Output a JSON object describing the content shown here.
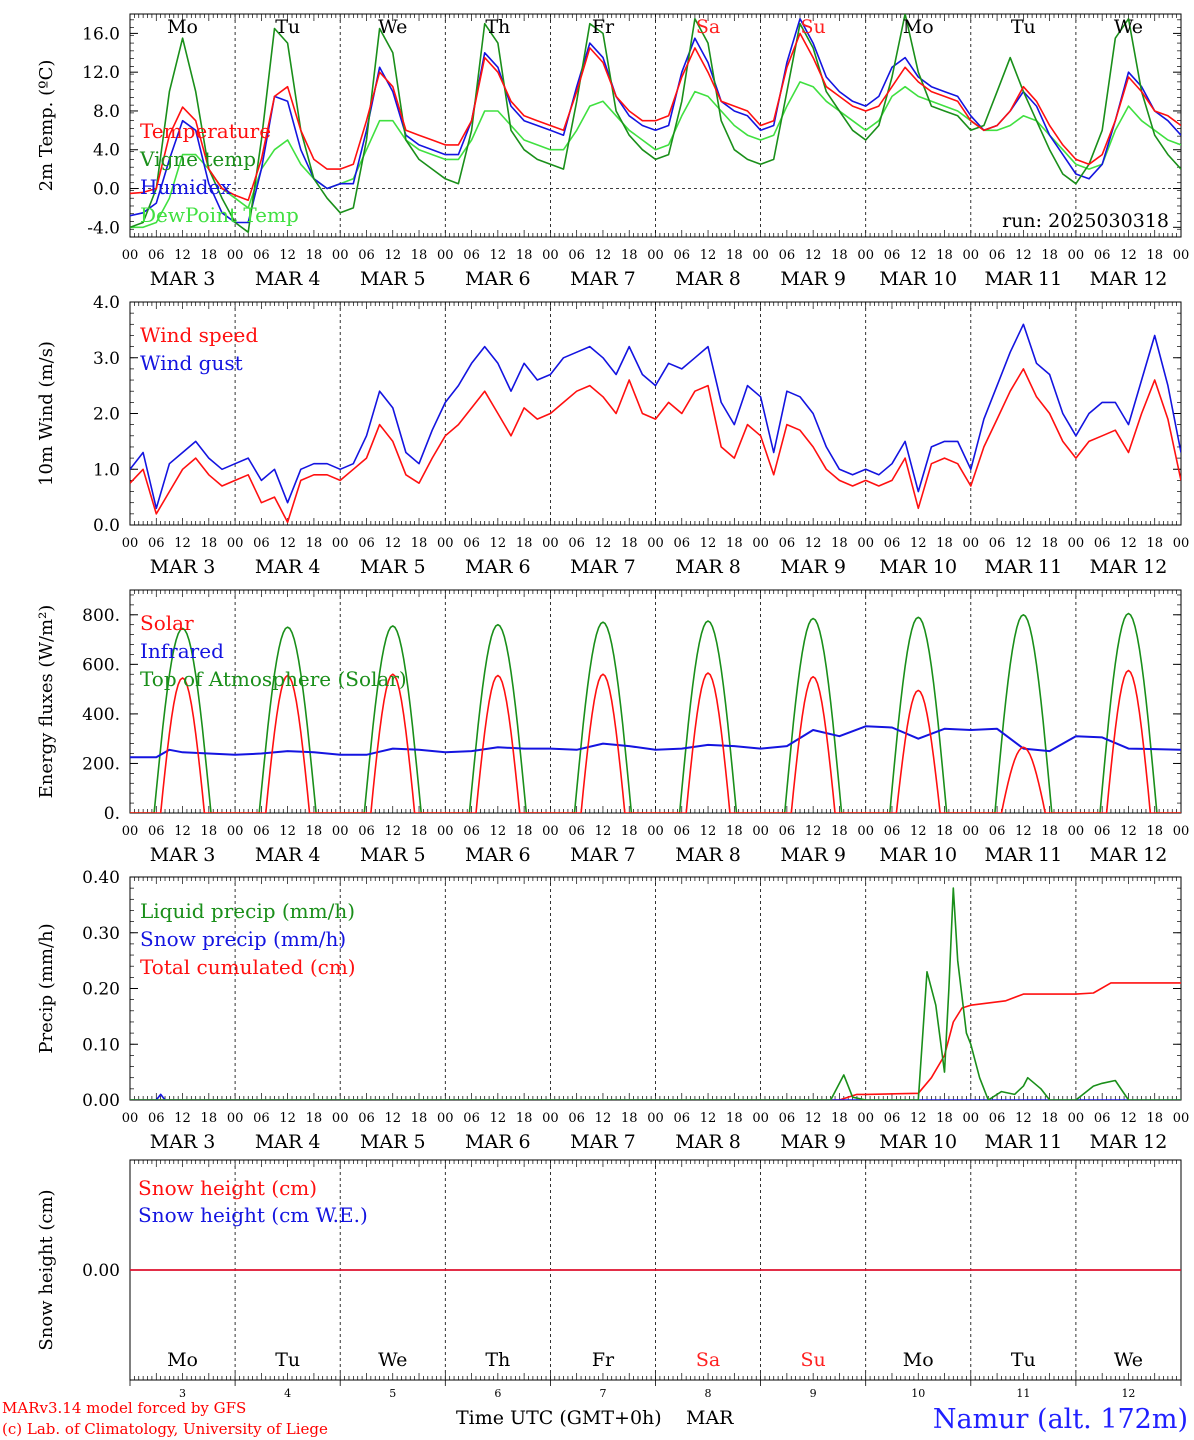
{
  "colors": {
    "red": "#ff1010",
    "green": "#1a8f1a",
    "blue": "#1414e0",
    "lightgreen": "#40e040",
    "weekend": "#ff2020",
    "site": "#2020ff",
    "footer": "#ff0000"
  },
  "days": {
    "weekday_labels": [
      "Mo",
      "Tu",
      "We",
      "Th",
      "Fr",
      "Sa",
      "Su",
      "Mo",
      "Tu",
      "We"
    ],
    "weekend_index": [
      5,
      6
    ],
    "date_labels": [
      "MAR  3",
      "MAR  4",
      "MAR  5",
      "MAR  6",
      "MAR  7",
      "MAR  8",
      "MAR  9",
      "MAR 10",
      "MAR 11",
      "MAR 12"
    ],
    "day_numbers": [
      "3",
      "4",
      "5",
      "6",
      "7",
      "8",
      "9",
      "10",
      "11",
      "12"
    ],
    "hour_labels": [
      "00",
      "06",
      "12",
      "18"
    ],
    "final_hour": "00"
  },
  "footer": {
    "model": "MARv3.14 model forced by GFS",
    "lab": "(c) Lab. of Climatology, University of Liege",
    "xlabel": "Time UTC (GMT+0h)",
    "month": "MAR",
    "site": "Namur (alt. 172m)"
  },
  "chart_data": [
    {
      "type": "line",
      "ylabel": "2m Temp. (ºC)",
      "ylim": [
        -5,
        18
      ],
      "yticks": [
        "-4.0",
        "0.0",
        "4.0",
        "8.0",
        "12.0",
        "16.0"
      ],
      "ytick_values": [
        -4,
        0,
        4,
        8,
        12,
        16
      ],
      "annotation": "run: 2025030318",
      "zero_line": true,
      "x_hours": [
        0,
        3,
        6,
        9,
        12,
        15,
        18,
        21,
        24,
        27,
        30,
        33,
        36,
        39,
        42,
        45,
        48,
        51,
        54,
        57,
        60,
        63,
        66,
        69,
        72,
        75,
        78,
        81,
        84,
        87,
        90,
        93,
        96,
        99,
        102,
        105,
        108,
        111,
        114,
        117,
        120,
        123,
        126,
        129,
        132,
        135,
        138,
        141,
        144,
        147,
        150,
        153,
        156,
        159,
        162,
        165,
        168,
        171,
        174,
        177,
        180,
        183,
        186,
        189,
        192,
        195,
        198,
        201,
        204,
        207,
        210,
        213,
        216,
        219,
        222,
        225,
        228,
        231,
        234,
        237,
        240
      ],
      "series": [
        {
          "name": "Temperature",
          "color": "#ff1010",
          "values": [
            -0.5,
            -0.4,
            0.0,
            5.5,
            8.4,
            7.0,
            2.0,
            0.0,
            -0.7,
            -1.2,
            3.0,
            9.5,
            10.5,
            6.0,
            3.0,
            2.0,
            2.0,
            2.5,
            7.0,
            12.0,
            10.5,
            6.0,
            5.5,
            5.0,
            4.5,
            4.5,
            7.0,
            13.5,
            12.0,
            9.0,
            7.5,
            7.0,
            6.5,
            6.0,
            10.0,
            14.5,
            13.0,
            9.5,
            8.0,
            7.0,
            7.0,
            7.5,
            11.5,
            14.5,
            12.0,
            9.0,
            8.5,
            8.0,
            6.5,
            7.0,
            12.5,
            16.0,
            13.5,
            10.5,
            9.5,
            8.5,
            8.0,
            8.5,
            10.5,
            12.5,
            11.0,
            10.0,
            9.5,
            9.0,
            7.0,
            6.0,
            6.5,
            8.0,
            10.5,
            9.0,
            6.5,
            4.5,
            3.0,
            2.5,
            3.5,
            7.0,
            11.5,
            10.0,
            8.0,
            7.5,
            6.5
          ]
        },
        {
          "name": "Vigne temp",
          "color": "#1a8f1a",
          "values": [
            -4.0,
            -3.5,
            0.0,
            10.0,
            15.5,
            10.0,
            2.0,
            -1.0,
            -3.5,
            -4.5,
            5.0,
            16.5,
            15.0,
            6.0,
            1.0,
            -1.0,
            -2.5,
            -2.0,
            5.0,
            16.5,
            14.0,
            5.0,
            3.0,
            2.0,
            1.0,
            0.5,
            6.0,
            17.0,
            15.0,
            6.0,
            4.0,
            3.0,
            2.5,
            2.0,
            9.0,
            17.0,
            16.0,
            8.0,
            5.5,
            4.0,
            3.0,
            3.5,
            9.0,
            17.5,
            15.0,
            7.0,
            4.0,
            3.0,
            2.5,
            3.0,
            10.0,
            17.0,
            14.5,
            10.0,
            8.0,
            6.0,
            5.0,
            6.5,
            11.5,
            18.0,
            12.0,
            8.5,
            8.0,
            7.5,
            6.0,
            6.5,
            10.0,
            13.5,
            10.0,
            7.0,
            4.0,
            1.5,
            0.5,
            2.5,
            6.0,
            15.5,
            17.5,
            10.0,
            5.5,
            3.5,
            2.0
          ]
        },
        {
          "name": "Humidex",
          "color": "#1414e0",
          "values": [
            -2.8,
            -2.5,
            -1.5,
            3.0,
            7.0,
            6.0,
            0.5,
            -2.5,
            -3.5,
            -3.5,
            2.0,
            9.5,
            9.0,
            4.0,
            1.0,
            0.0,
            0.5,
            0.5,
            6.0,
            12.5,
            10.0,
            5.5,
            4.5,
            4.0,
            3.5,
            3.5,
            7.0,
            14.0,
            12.5,
            8.5,
            7.0,
            6.5,
            6.0,
            5.5,
            10.5,
            15.0,
            13.5,
            9.5,
            7.5,
            6.5,
            6.0,
            6.5,
            12.0,
            15.5,
            13.0,
            9.0,
            8.0,
            7.5,
            6.0,
            6.5,
            13.0,
            17.5,
            15.0,
            11.5,
            10.0,
            9.0,
            8.5,
            9.5,
            12.5,
            13.5,
            11.5,
            10.5,
            10.0,
            9.5,
            7.5,
            6.0,
            6.5,
            8.0,
            10.0,
            8.5,
            5.5,
            3.5,
            1.5,
            1.0,
            2.5,
            7.0,
            12.0,
            10.5,
            8.0,
            7.0,
            5.5
          ]
        },
        {
          "name": "DewPoint Temp",
          "color": "#40e040",
          "values": [
            -4.0,
            -4.0,
            -3.5,
            -1.0,
            3.5,
            3.5,
            2.0,
            0.0,
            -1.0,
            -2.0,
            2.0,
            4.0,
            5.0,
            2.5,
            1.0,
            0.0,
            0.5,
            1.0,
            4.0,
            7.0,
            7.0,
            5.0,
            4.0,
            3.5,
            3.0,
            3.0,
            5.0,
            8.0,
            8.0,
            6.5,
            5.0,
            4.5,
            4.0,
            4.0,
            6.0,
            8.5,
            9.0,
            7.5,
            6.0,
            5.0,
            4.0,
            4.5,
            7.5,
            10.0,
            9.5,
            8.0,
            6.5,
            5.5,
            5.0,
            5.5,
            8.5,
            11.0,
            10.5,
            9.0,
            8.0,
            7.0,
            6.0,
            7.0,
            9.5,
            10.5,
            9.5,
            9.0,
            8.5,
            8.0,
            7.0,
            6.0,
            6.0,
            6.5,
            7.5,
            7.0,
            5.5,
            4.0,
            2.5,
            2.0,
            2.5,
            6.0,
            8.5,
            7.0,
            6.0,
            5.0,
            4.5
          ]
        }
      ]
    },
    {
      "type": "line",
      "ylabel": "10m Wind (m/s)",
      "ylim": [
        0,
        4
      ],
      "yticks": [
        "0.0",
        "1.0",
        "2.0",
        "3.0",
        "4.0"
      ],
      "ytick_values": [
        0,
        1,
        2,
        3,
        4
      ],
      "x_hours": [
        0,
        3,
        6,
        9,
        12,
        15,
        18,
        21,
        24,
        27,
        30,
        33,
        36,
        39,
        42,
        45,
        48,
        51,
        54,
        57,
        60,
        63,
        66,
        69,
        72,
        75,
        78,
        81,
        84,
        87,
        90,
        93,
        96,
        99,
        102,
        105,
        108,
        111,
        114,
        117,
        120,
        123,
        126,
        129,
        132,
        135,
        138,
        141,
        144,
        147,
        150,
        153,
        156,
        159,
        162,
        165,
        168,
        171,
        174,
        177,
        180,
        183,
        186,
        189,
        192,
        195,
        198,
        201,
        204,
        207,
        210,
        213,
        216,
        219,
        222,
        225,
        228,
        231,
        234,
        237,
        240
      ],
      "series": [
        {
          "name": "Wind speed",
          "color": "#ff1010",
          "values": [
            0.75,
            1.0,
            0.2,
            0.6,
            1.0,
            1.2,
            0.9,
            0.7,
            0.8,
            0.9,
            0.4,
            0.5,
            0.05,
            0.8,
            0.9,
            0.9,
            0.8,
            1.0,
            1.2,
            1.8,
            1.5,
            0.9,
            0.75,
            1.2,
            1.6,
            1.8,
            2.1,
            2.4,
            2.0,
            1.6,
            2.1,
            1.9,
            2.0,
            2.2,
            2.4,
            2.5,
            2.3,
            2.0,
            2.6,
            2.0,
            1.9,
            2.2,
            2.0,
            2.4,
            2.5,
            1.4,
            1.2,
            1.8,
            1.6,
            0.9,
            1.8,
            1.7,
            1.4,
            1.0,
            0.8,
            0.7,
            0.8,
            0.7,
            0.8,
            1.2,
            0.3,
            1.1,
            1.2,
            1.1,
            0.7,
            1.4,
            1.9,
            2.4,
            2.8,
            2.3,
            2.0,
            1.5,
            1.2,
            1.5,
            1.6,
            1.7,
            1.3,
            2.0,
            2.6,
            1.9,
            0.8
          ]
        },
        {
          "name": "Wind gust",
          "color": "#1414e0",
          "values": [
            1.0,
            1.3,
            0.3,
            1.1,
            1.3,
            1.5,
            1.2,
            1.0,
            1.1,
            1.2,
            0.8,
            1.0,
            0.4,
            1.0,
            1.1,
            1.1,
            1.0,
            1.1,
            1.6,
            2.4,
            2.1,
            1.3,
            1.1,
            1.7,
            2.2,
            2.5,
            2.9,
            3.2,
            2.9,
            2.4,
            2.9,
            2.6,
            2.7,
            3.0,
            3.1,
            3.2,
            3.0,
            2.7,
            3.2,
            2.7,
            2.5,
            2.9,
            2.8,
            3.0,
            3.2,
            2.2,
            1.8,
            2.5,
            2.3,
            1.3,
            2.4,
            2.3,
            2.0,
            1.4,
            1.0,
            0.9,
            1.0,
            0.9,
            1.1,
            1.5,
            0.6,
            1.4,
            1.5,
            1.5,
            1.0,
            1.9,
            2.5,
            3.1,
            3.6,
            2.9,
            2.7,
            2.0,
            1.6,
            2.0,
            2.2,
            2.2,
            1.8,
            2.6,
            3.4,
            2.5,
            1.3
          ]
        }
      ]
    },
    {
      "type": "line",
      "ylabel": "Energy fluxes (W/m²)",
      "ylim": [
        0,
        900
      ],
      "yticks": [
        "0.",
        "200.",
        "400.",
        "600.",
        "800."
      ],
      "ytick_values": [
        0,
        200,
        400,
        600,
        800
      ],
      "series": [
        {
          "name": "Solar",
          "color": "#ff1010",
          "day_peaks": [
            545,
            555,
            560,
            555,
            560,
            565,
            550,
            495,
            265,
            575
          ],
          "day_half_width_h": 5
        },
        {
          "name": "Infrared",
          "color": "#1414e0",
          "x_hours": [
            0,
            6,
            9,
            12,
            18,
            24,
            30,
            36,
            42,
            48,
            54,
            60,
            66,
            72,
            78,
            84,
            90,
            96,
            102,
            108,
            114,
            120,
            126,
            132,
            138,
            144,
            150,
            156,
            162,
            168,
            174,
            180,
            186,
            192,
            198,
            204,
            210,
            216,
            222,
            228,
            234,
            240
          ],
          "values": [
            225,
            225,
            255,
            245,
            240,
            235,
            240,
            250,
            245,
            235,
            235,
            260,
            255,
            245,
            250,
            265,
            260,
            260,
            255,
            280,
            270,
            255,
            260,
            275,
            270,
            260,
            270,
            335,
            310,
            350,
            345,
            300,
            340,
            335,
            340,
            260,
            250,
            310,
            305,
            260,
            258,
            255
          ]
        },
        {
          "name": "Top of Atmosphere (Solar)",
          "color": "#1a8f1a",
          "day_peaks": [
            745,
            750,
            755,
            760,
            770,
            775,
            785,
            790,
            800,
            805
          ],
          "day_half_width_h": 6.5
        }
      ]
    },
    {
      "type": "line",
      "ylabel": "Precip (mm/h)",
      "ylim": [
        0,
        0.4
      ],
      "yticks": [
        "0.00",
        "0.10",
        "0.20",
        "0.30",
        "0.40"
      ],
      "ytick_values": [
        0,
        0.1,
        0.2,
        0.3,
        0.4
      ],
      "series": [
        {
          "name": "Liquid precip (mm/h)",
          "color": "#1a8f1a",
          "x_hours": [
            0,
            160,
            163,
            165,
            168,
            180,
            182,
            184,
            186,
            187,
            188,
            189,
            191,
            192,
            194,
            196,
            199,
            202,
            204,
            205,
            208,
            210,
            216,
            220,
            222,
            225,
            228,
            240
          ],
          "values": [
            0,
            0,
            0.045,
            0.005,
            0,
            0,
            0.23,
            0.17,
            0.05,
            0.2,
            0.38,
            0.25,
            0.12,
            0.1,
            0.04,
            0.0,
            0.015,
            0.01,
            0.025,
            0.04,
            0.02,
            0,
            0,
            0.025,
            0.03,
            0.035,
            0,
            0
          ]
        },
        {
          "name": "Snow precip (mm/h)",
          "color": "#1414e0",
          "x_hours": [
            0,
            6,
            7,
            8,
            240
          ],
          "values": [
            0,
            0,
            0.01,
            0,
            0
          ]
        },
        {
          "name": "Total cumulated (cm)",
          "color": "#ff1010",
          "x_hours": [
            0,
            162,
            166,
            168,
            180,
            183,
            186,
            188,
            190,
            192,
            200,
            204,
            210,
            216,
            220,
            224,
            230,
            240
          ],
          "values": [
            0,
            0,
            0.01,
            0.01,
            0.012,
            0.04,
            0.08,
            0.14,
            0.165,
            0.17,
            0.178,
            0.19,
            0.19,
            0.19,
            0.192,
            0.21,
            0.21,
            0.21
          ]
        }
      ]
    },
    {
      "type": "line",
      "ylabel": "Snow height (cm)",
      "ylim": [
        -1,
        1
      ],
      "yticks": [
        "0.00"
      ],
      "ytick_values": [
        0
      ],
      "series": [
        {
          "name": "Snow height (cm)",
          "color": "#ff1010",
          "x_hours": [
            0,
            240
          ],
          "values": [
            0,
            0
          ]
        },
        {
          "name": "Snow height (cm W.E.)",
          "color": "#1414e0",
          "x_hours": [
            0,
            240
          ],
          "values": [
            0,
            0
          ]
        }
      ]
    }
  ]
}
